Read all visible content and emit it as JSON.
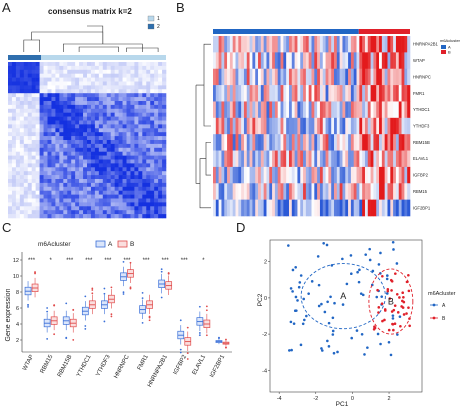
{
  "panels": {
    "a": {
      "label": "A",
      "title": "consensus matrix k=2",
      "legend": [
        "1",
        "2"
      ],
      "colors": {
        "cluster1": "#b8d8ec",
        "cluster2": "#2f6fae",
        "high": "#1431e0",
        "low": "#ffffff"
      }
    },
    "b": {
      "label": "B",
      "annotation_title": "m6Acluster",
      "annotation_levels": [
        "A",
        "B"
      ],
      "genes": [
        "HNRNPA2B1",
        "WTAP",
        "HNRNPC",
        "FMR1",
        "YTHDC1",
        "YTHDF3",
        "RBM15B",
        "ELAVL1",
        "IGFBP2",
        "RBM15",
        "IGF2BP1"
      ],
      "colors": {
        "A": "#2166c4",
        "B": "#e0202a",
        "high": "#e31a1c",
        "low": "#2b59d6",
        "mid": "#ffffff"
      }
    },
    "c": {
      "label": "C",
      "legend_title": "m6Acluster",
      "legend_levels": [
        "A",
        "B"
      ],
      "ylabel": "Gene expression",
      "yticks": [
        2,
        4,
        6,
        8,
        10,
        12
      ],
      "colors": {
        "A": "#3a6fd8",
        "B": "#e04b4b"
      }
    },
    "d": {
      "label": "D",
      "xlabel": "PC1",
      "ylabel": "PC2",
      "xticks": [
        -4,
        -2,
        0,
        2
      ],
      "yticks": [
        -4,
        -2,
        0,
        2
      ],
      "legend_title": "m6Acluster",
      "legend_levels": [
        "A",
        "B"
      ],
      "centroid_labels": [
        "A",
        "B"
      ],
      "colors": {
        "A": "#2166c4",
        "B": "#e0202a"
      }
    }
  },
  "chart_data": [
    {
      "type": "heatmap",
      "panel": "A",
      "title": "consensus matrix k=2",
      "clusters": [
        {
          "name": "1",
          "fraction": 0.21
        },
        {
          "name": "2",
          "fraction": 0.79
        }
      ]
    },
    {
      "type": "heatmap",
      "panel": "B",
      "rows": [
        "HNRNPA2B1",
        "WTAP",
        "HNRNPC",
        "FMR1",
        "YTHDC1",
        "YTHDF3",
        "RBM15B",
        "ELAVL1",
        "IGFBP2",
        "RBM15",
        "IGF2BP1"
      ],
      "group_fraction": {
        "A": 0.74,
        "B": 0.26
      }
    },
    {
      "type": "box",
      "panel": "C",
      "ylabel": "Gene expression",
      "ylim": [
        0.5,
        13
      ],
      "categories": [
        "WTAP",
        "RBM15",
        "RBM15B",
        "YTHDC1",
        "YTHDF3",
        "HNRNPC",
        "FMR1",
        "HNRNPA2B1",
        "IGFBP2",
        "ELAVL1",
        "IGF2BP1"
      ],
      "significance": [
        "***",
        "*",
        "***",
        "***",
        "***",
        "***",
        "***",
        "***",
        "***",
        "*",
        ""
      ],
      "series": [
        {
          "name": "A",
          "median": [
            8.1,
            4.1,
            4.4,
            5.6,
            6.4,
            9.9,
            5.8,
            9.0,
            2.6,
            4.3,
            1.8
          ]
        },
        {
          "name": "B",
          "median": [
            8.5,
            4.4,
            4.1,
            6.4,
            7.1,
            10.3,
            6.4,
            8.8,
            1.8,
            4.0,
            1.6
          ]
        }
      ]
    },
    {
      "type": "scatter",
      "panel": "D",
      "xlabel": "PC1",
      "ylabel": "PC2",
      "xlim": [
        -4.5,
        3.8
      ],
      "ylim": [
        -5.2,
        3.2
      ],
      "centroids": [
        {
          "name": "A",
          "x": -0.5,
          "y": 0.1
        },
        {
          "name": "B",
          "x": 2.1,
          "y": -0.2
        }
      ]
    }
  ]
}
